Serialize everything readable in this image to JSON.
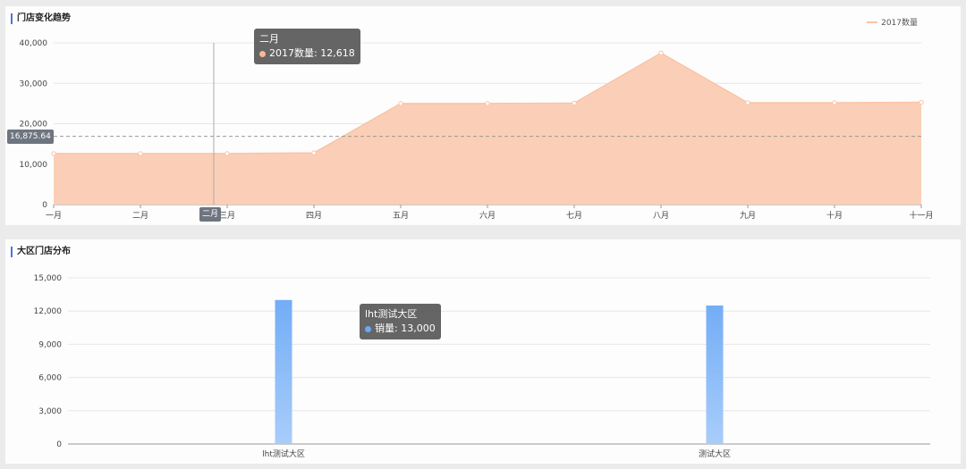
{
  "trend_panel": {
    "title": "门店变化趋势",
    "legend_label": "2017数量",
    "tooltip": {
      "category": "二月",
      "series": "2017数量",
      "value": "12,618"
    },
    "reference_label": "16,875.64",
    "axis_pointer_label": "二月"
  },
  "region_panel": {
    "title": "大区门店分布",
    "tooltip": {
      "category": "lht测试大区",
      "series": "销量",
      "value": "13,000"
    }
  },
  "colors": {
    "area_fill": "#fbcfb7",
    "area_line": "#f9c4a6",
    "bar_top": "#73adf6",
    "bar_bottom": "#a8cdfa",
    "accent": "#4e73df"
  },
  "chart_data": [
    {
      "type": "area",
      "categories": [
        "一月",
        "二月",
        "三月",
        "四月",
        "五月",
        "六月",
        "七月",
        "八月",
        "九月",
        "十月",
        "十一月"
      ],
      "series": [
        {
          "name": "2017数量",
          "values": [
            12618,
            12618,
            12618,
            12800,
            25000,
            25000,
            25100,
            37500,
            25200,
            25200,
            25300
          ]
        }
      ],
      "ylim": [
        0,
        40000
      ],
      "yticks": [
        "0",
        "10,000",
        "20,000",
        "30,000",
        "40,000"
      ],
      "reference_line": 16875.64,
      "grid": true,
      "legend": "top-right"
    },
    {
      "type": "bar",
      "categories": [
        "lht测试大区",
        "测试大区"
      ],
      "series": [
        {
          "name": "销量",
          "values": [
            13000,
            12500
          ]
        }
      ],
      "ylim": [
        0,
        15000
      ],
      "yticks": [
        "0",
        "3,000",
        "6,000",
        "9,000",
        "12,000",
        "15,000"
      ],
      "grid": true
    }
  ]
}
